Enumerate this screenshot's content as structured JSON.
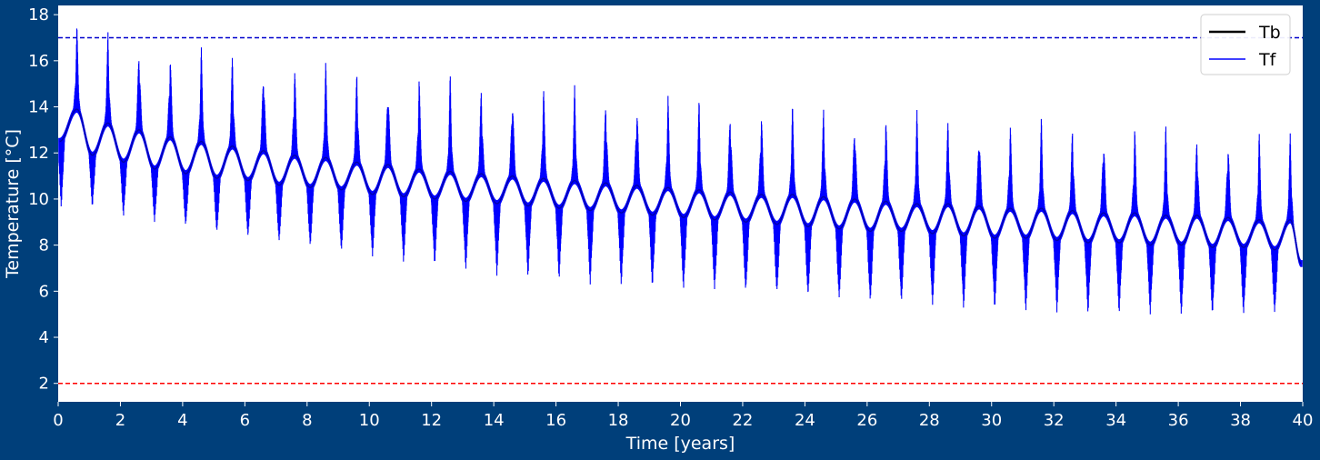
{
  "chart_data": {
    "type": "line",
    "xlabel": "Time [years]",
    "ylabel": "Temperature [°C]",
    "xlim": [
      0,
      40
    ],
    "ylim": [
      1.2,
      18.4
    ],
    "xticks": [
      0,
      2,
      4,
      6,
      8,
      10,
      12,
      14,
      16,
      18,
      20,
      22,
      24,
      26,
      28,
      30,
      32,
      34,
      36,
      38,
      40
    ],
    "yticks": [
      2,
      4,
      6,
      8,
      10,
      12,
      14,
      16,
      18
    ],
    "grid": false,
    "legend_position": "top-right",
    "colors": {
      "background": "#003f7a",
      "plot_area": "#ffffff",
      "axis_text": "#ffffff",
      "tb": "#000000",
      "tf": "#0000ff",
      "limit_max": "#0000cc",
      "limit_min": "#ff0000"
    },
    "reference_lines": [
      {
        "name": "max limit",
        "y": 17.0,
        "style": "dashed",
        "color": "#0000cc"
      },
      {
        "name": "min limit",
        "y": 2.0,
        "style": "dashed",
        "color": "#ff0000"
      }
    ],
    "series": [
      {
        "name": "Tb",
        "description": "average fluid temperature (smooth yearly oscillation)",
        "x": [
          0.05,
          0.6,
          1.1,
          1.6,
          2.1,
          2.6,
          3.1,
          3.6,
          4.1,
          4.6,
          5.1,
          5.6,
          6.1,
          6.6,
          7.1,
          7.6,
          8.1,
          8.6,
          9.1,
          9.6,
          10.1,
          10.6,
          11.1,
          11.6,
          12.1,
          12.6,
          13.1,
          13.6,
          14.1,
          14.6,
          15.1,
          15.6,
          16.1,
          16.6,
          17.1,
          17.6,
          18.1,
          18.6,
          19.1,
          19.6,
          20.1,
          20.6,
          21.1,
          21.6,
          22.1,
          22.6,
          23.1,
          23.6,
          24.1,
          24.6,
          25.1,
          25.6,
          26.1,
          26.6,
          27.1,
          27.6,
          28.1,
          28.6,
          29.1,
          29.6,
          30.1,
          30.6,
          31.1,
          31.6,
          32.1,
          32.6,
          33.1,
          33.6,
          34.1,
          34.6,
          35.1,
          35.6,
          36.1,
          36.6,
          37.1,
          37.6,
          38.1,
          38.6,
          39.1,
          39.6,
          39.95
        ],
        "y": [
          12.5,
          13.9,
          11.9,
          13.3,
          11.6,
          13.0,
          11.3,
          12.7,
          11.1,
          12.5,
          10.9,
          12.3,
          10.8,
          12.1,
          10.6,
          11.9,
          10.5,
          11.8,
          10.4,
          11.6,
          10.2,
          11.5,
          10.1,
          11.3,
          10.0,
          11.2,
          9.9,
          11.1,
          9.8,
          11.0,
          9.7,
          10.9,
          9.6,
          10.8,
          9.5,
          10.7,
          9.4,
          10.6,
          9.3,
          10.5,
          9.2,
          10.4,
          9.1,
          10.3,
          9.0,
          10.2,
          8.9,
          10.2,
          8.8,
          10.1,
          8.7,
          10.0,
          8.6,
          9.9,
          8.6,
          9.8,
          8.5,
          9.8,
          8.4,
          9.7,
          8.3,
          9.6,
          8.3,
          9.6,
          8.2,
          9.5,
          8.1,
          9.4,
          8.1,
          9.4,
          8.0,
          9.3,
          8.0,
          9.3,
          7.9,
          9.2,
          7.9,
          9.1,
          7.8,
          9.1,
          7.2
        ]
      },
      {
        "name": "Tf",
        "description": "fluid temperature with daily peaks; per-year max and min envelope",
        "peak_x": [
          0.6,
          1.6,
          2.6,
          3.6,
          4.6,
          5.6,
          6.6,
          7.6,
          8.6,
          9.6,
          10.6,
          11.6,
          12.6,
          13.6,
          14.6,
          15.6,
          16.6,
          17.6,
          18.6,
          19.6,
          20.6,
          21.6,
          22.6,
          23.6,
          24.6,
          25.6,
          26.6,
          27.6,
          28.6,
          29.6,
          30.6,
          31.6,
          32.6,
          33.6,
          34.6,
          35.6,
          36.6,
          37.6,
          38.6,
          39.6
        ],
        "peak_max": [
          17.6,
          17.3,
          17.1,
          16.7,
          16.6,
          16.4,
          16.3,
          16.1,
          15.9,
          15.8,
          15.6,
          15.5,
          15.4,
          15.2,
          15.1,
          15.0,
          14.9,
          14.7,
          14.6,
          14.5,
          14.4,
          14.3,
          14.2,
          14.1,
          14.0,
          13.9,
          13.9,
          13.8,
          13.7,
          13.6,
          13.5,
          13.5,
          13.4,
          13.3,
          13.2,
          13.2,
          13.1,
          13.0,
          13.0,
          12.9
        ],
        "trough_x": [
          1.1,
          2.1,
          3.1,
          4.1,
          5.1,
          6.1,
          7.1,
          8.1,
          9.1,
          10.1,
          11.1,
          12.1,
          13.1,
          14.1,
          15.1,
          16.1,
          17.1,
          18.1,
          19.1,
          20.1,
          21.1,
          22.1,
          23.1,
          24.1,
          25.1,
          26.1,
          27.1,
          28.1,
          29.1,
          30.1,
          31.1,
          32.1,
          33.1,
          34.1,
          35.1,
          36.1,
          37.1,
          38.1,
          39.1,
          39.95
        ],
        "trough_min": [
          9.7,
          9.3,
          9.0,
          8.8,
          8.5,
          8.3,
          8.1,
          7.9,
          7.7,
          7.5,
          7.3,
          7.2,
          7.0,
          6.8,
          6.7,
          6.6,
          6.4,
          6.3,
          6.2,
          6.1,
          6.0,
          5.9,
          5.8,
          5.7,
          5.6,
          5.5,
          5.5,
          5.4,
          5.3,
          5.3,
          5.2,
          5.2,
          5.1,
          5.1,
          5.1,
          5.0,
          5.0,
          5.0,
          5.0,
          5.1
        ]
      }
    ]
  }
}
